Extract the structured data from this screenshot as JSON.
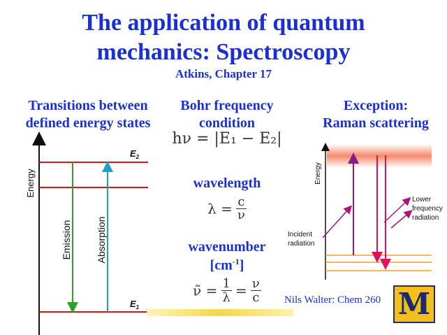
{
  "title": {
    "line1": "The application of quantum",
    "line2": "mechanics: Spectroscopy",
    "subtitle": "Atkins, Chapter 17"
  },
  "columns": {
    "left": {
      "line1": "Transitions between",
      "line2": "defined energy states"
    },
    "middle": {
      "line1": "Bohr frequency",
      "line2": "condition"
    },
    "right": {
      "line1": "Exception:",
      "line2": "Raman scattering"
    }
  },
  "left_diagram": {
    "axis_label": "Energy",
    "e2_label": "E",
    "e2_sub": "2",
    "e1_label": "E",
    "e1_sub": "1",
    "emission_label": "Emission",
    "absorption_label": "Absorption",
    "colors": {
      "levels": "#cc1a1a",
      "emission": "#2ea02e",
      "absorption": "#1aa3c8"
    }
  },
  "middle_content": {
    "bohr_equation": "hν = |E₁ − E₂|",
    "wavelength_label": "wavelength",
    "wavelength_eq_lhs": "λ =",
    "wavelength_num": "c",
    "wavelength_den": "ν",
    "wavenumber_label": "wavenumber",
    "wavenumber_unit_base": "[cm",
    "wavenumber_unit_exp": "-1",
    "wavenumber_unit_close": "]",
    "wavenumber_lhs": "ν̃ =",
    "wn_num1": "1",
    "wn_den1": "λ",
    "wn_eq": "=",
    "wn_num2": "ν",
    "wn_den2": "c"
  },
  "right_diagram": {
    "axis_label": "Energy",
    "lower_freq_label": [
      "Lower",
      "frequency",
      "radiation"
    ],
    "incident_label": [
      "Incident",
      "radiation"
    ],
    "colors": {
      "virtual_band": "#f58a6a",
      "arrows_up": "#8b1a8b",
      "arrows_down": "#e0105a",
      "vib_levels": "#f0a020",
      "incident_arrows": "#b0107a"
    }
  },
  "footer": {
    "credit": "Nils Walter: Chem 260",
    "logo_letter": "M"
  }
}
